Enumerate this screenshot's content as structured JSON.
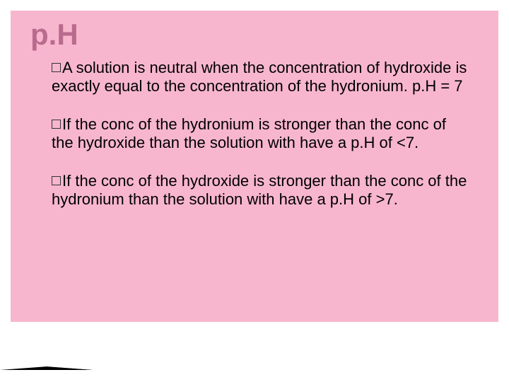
{
  "slide": {
    "title": "p.H",
    "bullets": [
      {
        "lead": "A",
        "rest": " solution is neutral when the concentration of hydroxide is exactly equal to the concentration of the hydronium.  p.H = 7"
      },
      {
        "lead": "If",
        "rest": " the conc of the hydronium is stronger than the conc of the hydroxide than the solution with have a p.H of <7."
      },
      {
        "lead": "If",
        "rest": " the conc of the hydroxide is stronger than the conc of the hydronium than the solution with have a p.H of >7."
      }
    ],
    "colors": {
      "pink_bg": "#f8b6ce",
      "title_color": "#b96b8e",
      "text_color": "#000000",
      "slide_bg": "#ffffff"
    },
    "typography": {
      "title_fontsize": 42,
      "body_fontsize": 22,
      "font_family": "Lucida Sans Unicode"
    }
  }
}
